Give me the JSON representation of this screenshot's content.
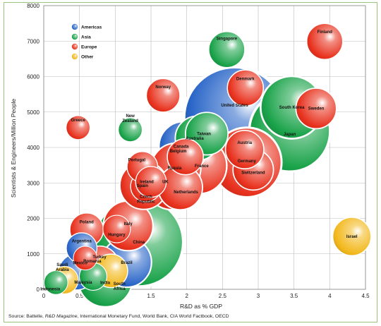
{
  "chart_data": {
    "type": "scatter",
    "title": "",
    "xlabel": "R&D as % GDP",
    "ylabel": "Scientists & Engineers/Million People",
    "xlim": [
      0,
      4.5
    ],
    "ylim": [
      0,
      8000
    ],
    "x_ticks": [
      "0",
      "0.5",
      "1",
      "1.5",
      "2",
      "2.5",
      "3",
      "3.5",
      "4",
      "4.5"
    ],
    "y_ticks": [
      "0",
      "1000",
      "2000",
      "3000",
      "4000",
      "5000",
      "6000",
      "7000",
      "8000"
    ],
    "grid": true,
    "legend_position": "top-left",
    "bubble_size": "relative size of R&D spending",
    "regions": [
      {
        "name": "Americas",
        "color": "#2a66c8"
      },
      {
        "name": "Asia",
        "color": "#1aa34a"
      },
      {
        "name": "Europe",
        "color": "#e8321e"
      },
      {
        "name": "Other",
        "color": "#f2b81b"
      }
    ],
    "points": [
      {
        "label": "United States",
        "region": "Americas",
        "x": 2.67,
        "y": 4840,
        "size": 64
      },
      {
        "label": "China",
        "region": "Asia",
        "x": 1.33,
        "y": 1330,
        "size": 48
      },
      {
        "label": "Japan",
        "region": "Asia",
        "x": 3.44,
        "y": 4460,
        "size": 39
      },
      {
        "label": "Germany",
        "region": "Europe",
        "x": 2.84,
        "y": 3580,
        "size": 28
      },
      {
        "label": "South Korea",
        "region": "Asia",
        "x": 3.47,
        "y": 5130,
        "size": 22
      },
      {
        "label": "France",
        "region": "Europe",
        "x": 2.17,
        "y": 3480,
        "size": 17
      },
      {
        "label": "India",
        "region": "Asia",
        "x": 0.86,
        "y": 270,
        "size": 16
      },
      {
        "label": "UK",
        "region": "Europe",
        "x": 1.8,
        "y": 3030,
        "size": 17
      },
      {
        "label": "Canada",
        "region": "Americas",
        "x": 1.96,
        "y": 4030,
        "size": 13
      },
      {
        "label": "Australia",
        "region": "Asia",
        "x": 2.15,
        "y": 4260,
        "size": 10
      },
      {
        "label": "Taiwan",
        "region": "Asia",
        "x": 2.28,
        "y": 4390,
        "size": 9
      },
      {
        "label": "Brazil",
        "region": "Americas",
        "x": 1.16,
        "y": 760,
        "size": 13
      },
      {
        "label": "Italy",
        "region": "Europe",
        "x": 1.18,
        "y": 1790,
        "size": 13
      },
      {
        "label": "Russia",
        "region": "Europe",
        "x": 1.85,
        "y": 3420,
        "size": 13
      },
      {
        "label": "Spain",
        "region": "Europe",
        "x": 1.4,
        "y": 2930,
        "size": 12
      },
      {
        "label": "Netherlands",
        "region": "Europe",
        "x": 1.91,
        "y": 2870,
        "size": 10
      },
      {
        "label": "Switzerland",
        "region": "Europe",
        "x": 2.93,
        "y": 3370,
        "size": 8
      },
      {
        "label": "Sweden",
        "region": "Europe",
        "x": 3.81,
        "y": 5100,
        "size": 8
      },
      {
        "label": "Austria",
        "region": "Europe",
        "x": 2.81,
        "y": 3940,
        "size": 7
      },
      {
        "label": "Belgium",
        "region": "Europe",
        "x": 1.98,
        "y": 3740,
        "size": 6
      },
      {
        "label": "Israel",
        "region": "Other",
        "x": 4.31,
        "y": 1490,
        "size": 7
      },
      {
        "label": "Finland",
        "region": "Europe",
        "x": 3.93,
        "y": 6990,
        "size": 6
      },
      {
        "label": "Singapore",
        "region": "Asia",
        "x": 2.56,
        "y": 6760,
        "size": 6
      },
      {
        "label": "Denmark",
        "region": "Europe",
        "x": 2.82,
        "y": 5680,
        "size": 6
      },
      {
        "label": "Norway",
        "region": "Europe",
        "x": 1.67,
        "y": 5470,
        "size": 5
      },
      {
        "label": "Mexico",
        "region": "Americas",
        "x": 0.46,
        "y": 490,
        "size": 6
      },
      {
        "label": "Turkey",
        "region": "Europe",
        "x": 0.78,
        "y": 680,
        "size": 7
      },
      {
        "label": "Poland",
        "region": "Europe",
        "x": 0.6,
        "y": 1680,
        "size": 5
      },
      {
        "label": "Argentina",
        "region": "Americas",
        "x": 0.53,
        "y": 1160,
        "size": 4
      },
      {
        "label": "South Africa",
        "region": "Other",
        "x": 0.94,
        "y": 520,
        "size": 5
      },
      {
        "label": "Hungary",
        "region": "Europe",
        "x": 1.02,
        "y": 1700,
        "size": 3
      },
      {
        "label": "Czech Republic",
        "region": "Europe",
        "x": 1.43,
        "y": 2900,
        "size": 4
      },
      {
        "label": "Portugal",
        "region": "Europe",
        "x": 1.38,
        "y": 3450,
        "size": 4
      },
      {
        "label": "Ireland",
        "region": "Europe",
        "x": 1.5,
        "y": 3030,
        "size": 4
      },
      {
        "label": "Malaysia",
        "region": "Asia",
        "x": 0.69,
        "y": 360,
        "size": 3
      },
      {
        "label": "Romania",
        "region": "Europe",
        "x": 0.58,
        "y": 880,
        "size": 2
      },
      {
        "label": "Saudi Arabia",
        "region": "Other",
        "x": 0.29,
        "y": 260,
        "size": 3
      },
      {
        "label": "Indonesia",
        "region": "Asia",
        "x": 0.17,
        "y": 190,
        "size": 2
      },
      {
        "label": "Greece",
        "region": "Europe",
        "x": 0.48,
        "y": 4560,
        "size": 2
      },
      {
        "label": "New Zealand",
        "region": "Asia",
        "x": 1.21,
        "y": 4500,
        "size": 2
      }
    ]
  },
  "source": {
    "prefix": "Source: Battelle, ",
    "magazine": "R&D Magazine",
    "suffix": ", International Monetary Fund, World Bank, CIA World Factbook, OECD"
  }
}
